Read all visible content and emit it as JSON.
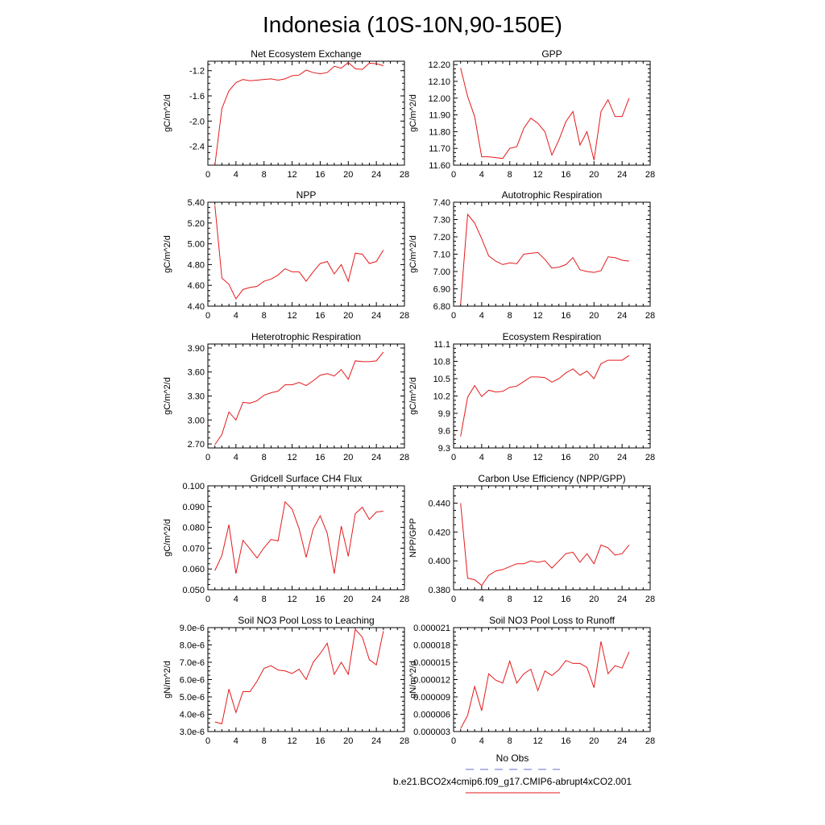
{
  "figure_title": "Indonesia (10S-10N,90-150E)",
  "legend": [
    {
      "label": "No Obs",
      "color": "#6b6bd6",
      "style": "dashed"
    },
    {
      "label": "b.e21.BCO2x4cmip6.f09_g17.CMIP6-abrupt4xCO2.001",
      "color": "#e41a1c",
      "style": "solid"
    }
  ],
  "chart_data": [
    {
      "type": "line",
      "title": "Net Ecosystem Exchange",
      "ylabel": "gC/m^2/d",
      "xlim": [
        0,
        28
      ],
      "ylim": [
        -2.7,
        -1.05
      ],
      "xticks": [
        0,
        4,
        8,
        12,
        16,
        20,
        24,
        28
      ],
      "xtick_labels": [
        "0",
        "4",
        "8",
        "12",
        "16",
        "20",
        "24",
        "28"
      ],
      "yticks": [
        -2.4,
        -2.0,
        -1.6,
        -1.2
      ],
      "ytick_labels": [
        "-2.4",
        "-2.0",
        "-1.6",
        "-1.2"
      ],
      "x": [
        1,
        2,
        3,
        4,
        5,
        6,
        7,
        8,
        9,
        10,
        11,
        12,
        13,
        14,
        15,
        16,
        17,
        18,
        19,
        20,
        21,
        22,
        23,
        24,
        25
      ],
      "series": [
        {
          "name": "b.e21.BCO2x4cmip6.f09_g17.CMIP6-abrupt4xCO2.001",
          "values": [
            -2.7,
            -1.8,
            -1.52,
            -1.39,
            -1.34,
            -1.36,
            -1.35,
            -1.34,
            -1.33,
            -1.35,
            -1.33,
            -1.28,
            -1.27,
            -1.19,
            -1.23,
            -1.25,
            -1.23,
            -1.13,
            -1.16,
            -1.07,
            -1.17,
            -1.18,
            -1.08,
            -1.09,
            -1.12
          ]
        }
      ]
    },
    {
      "type": "line",
      "title": "GPP",
      "ylabel": "gC/m^2/d",
      "xlim": [
        0,
        28
      ],
      "ylim": [
        11.6,
        12.22
      ],
      "xticks": [
        0,
        4,
        8,
        12,
        16,
        20,
        24,
        28
      ],
      "xtick_labels": [
        "0",
        "4",
        "8",
        "12",
        "16",
        "20",
        "24",
        "28"
      ],
      "yticks": [
        11.6,
        11.7,
        11.8,
        11.9,
        12.0,
        12.1,
        12.2
      ],
      "ytick_labels": [
        "11.60",
        "11.70",
        "11.80",
        "11.90",
        "12.00",
        "12.10",
        "12.20"
      ],
      "x": [
        1,
        2,
        3,
        4,
        5,
        6,
        7,
        8,
        9,
        10,
        11,
        12,
        13,
        14,
        15,
        16,
        17,
        18,
        19,
        20,
        21,
        22,
        23,
        24,
        25
      ],
      "series": [
        {
          "name": "b.e21.BCO2x4cmip6.f09_g17.CMIP6-abrupt4xCO2.001",
          "values": [
            12.18,
            12.01,
            11.89,
            11.65,
            11.65,
            11.645,
            11.64,
            11.7,
            11.71,
            11.82,
            11.88,
            11.85,
            11.8,
            11.66,
            11.75,
            11.86,
            11.92,
            11.72,
            11.8,
            11.63,
            11.92,
            11.99,
            11.89,
            11.89,
            12.0
          ]
        }
      ]
    },
    {
      "type": "line",
      "title": "NPP",
      "ylabel": "gC/m^2/d",
      "xlim": [
        0,
        28
      ],
      "ylim": [
        4.4,
        5.4
      ],
      "xticks": [
        0,
        4,
        8,
        12,
        16,
        20,
        24,
        28
      ],
      "xtick_labels": [
        "0",
        "4",
        "8",
        "12",
        "16",
        "20",
        "24",
        "28"
      ],
      "yticks": [
        4.4,
        4.6,
        4.8,
        5.0,
        5.2,
        5.4
      ],
      "ytick_labels": [
        "4.40",
        "4.60",
        "4.80",
        "5.00",
        "5.20",
        "5.40"
      ],
      "x": [
        1,
        2,
        3,
        4,
        5,
        6,
        7,
        8,
        9,
        10,
        11,
        12,
        13,
        14,
        15,
        16,
        17,
        18,
        19,
        20,
        21,
        22,
        23,
        24,
        25
      ],
      "series": [
        {
          "name": "b.e21.BCO2x4cmip6.f09_g17.CMIP6-abrupt4xCO2.001",
          "values": [
            5.37,
            4.67,
            4.61,
            4.47,
            4.56,
            4.58,
            4.59,
            4.64,
            4.66,
            4.7,
            4.76,
            4.73,
            4.73,
            4.64,
            4.73,
            4.81,
            4.83,
            4.71,
            4.8,
            4.64,
            4.91,
            4.9,
            4.81,
            4.83,
            4.94
          ]
        }
      ]
    },
    {
      "type": "line",
      "title": "Autotrophic Respiration",
      "ylabel": "gC/m^2/d",
      "xlim": [
        0,
        28
      ],
      "ylim": [
        6.8,
        7.4
      ],
      "xticks": [
        0,
        4,
        8,
        12,
        16,
        20,
        24,
        28
      ],
      "xtick_labels": [
        "0",
        "4",
        "8",
        "12",
        "16",
        "20",
        "24",
        "28"
      ],
      "yticks": [
        6.8,
        6.9,
        7.0,
        7.1,
        7.2,
        7.3,
        7.4
      ],
      "ytick_labels": [
        "6.80",
        "6.90",
        "7.00",
        "7.10",
        "7.20",
        "7.30",
        "7.40"
      ],
      "x": [
        1,
        2,
        3,
        4,
        5,
        6,
        7,
        8,
        9,
        10,
        11,
        12,
        13,
        14,
        15,
        16,
        17,
        18,
        19,
        20,
        21,
        22,
        23,
        24,
        25
      ],
      "series": [
        {
          "name": "b.e21.BCO2x4cmip6.f09_g17.CMIP6-abrupt4xCO2.001",
          "values": [
            6.81,
            7.33,
            7.28,
            7.19,
            7.09,
            7.06,
            7.04,
            7.05,
            7.045,
            7.1,
            7.105,
            7.11,
            7.07,
            7.02,
            7.025,
            7.04,
            7.08,
            7.01,
            7.0,
            6.995,
            7.005,
            7.085,
            7.08,
            7.065,
            7.06
          ]
        }
      ]
    },
    {
      "type": "line",
      "title": "Heterotrophic Respiration",
      "ylabel": "gC/m^2/d",
      "xlim": [
        0,
        28
      ],
      "ylim": [
        2.65,
        3.95
      ],
      "xticks": [
        0,
        4,
        8,
        12,
        16,
        20,
        24,
        28
      ],
      "xtick_labels": [
        "0",
        "4",
        "8",
        "12",
        "16",
        "20",
        "24",
        "28"
      ],
      "yticks": [
        2.7,
        3.0,
        3.3,
        3.6,
        3.9
      ],
      "ytick_labels": [
        "2.70",
        "3.00",
        "3.30",
        "3.60",
        "3.90"
      ],
      "x": [
        1,
        2,
        3,
        4,
        5,
        6,
        7,
        8,
        9,
        10,
        11,
        12,
        13,
        14,
        15,
        16,
        17,
        18,
        19,
        20,
        21,
        22,
        23,
        24,
        25
      ],
      "series": [
        {
          "name": "b.e21.BCO2x4cmip6.f09_g17.CMIP6-abrupt4xCO2.001",
          "values": [
            2.69,
            2.82,
            3.1,
            3.0,
            3.22,
            3.21,
            3.24,
            3.31,
            3.34,
            3.36,
            3.44,
            3.44,
            3.47,
            3.43,
            3.49,
            3.56,
            3.58,
            3.55,
            3.63,
            3.51,
            3.74,
            3.73,
            3.73,
            3.74,
            3.85
          ]
        }
      ]
    },
    {
      "type": "line",
      "title": "Ecosystem Respiration",
      "ylabel": "gC/m^2/d",
      "xlim": [
        0,
        28
      ],
      "ylim": [
        9.3,
        11.1
      ],
      "xticks": [
        0,
        4,
        8,
        12,
        16,
        20,
        24,
        28
      ],
      "xtick_labels": [
        "0",
        "4",
        "8",
        "12",
        "16",
        "20",
        "24",
        "28"
      ],
      "yticks": [
        9.3,
        9.6,
        9.9,
        10.2,
        10.5,
        10.8,
        11.1
      ],
      "ytick_labels": [
        "9.3",
        "9.6",
        "9.9",
        "10.2",
        "10.5",
        "10.8",
        "11.1"
      ],
      "x": [
        1,
        2,
        3,
        4,
        5,
        6,
        7,
        8,
        9,
        10,
        11,
        12,
        13,
        14,
        15,
        16,
        17,
        18,
        19,
        20,
        21,
        22,
        23,
        24,
        25
      ],
      "series": [
        {
          "name": "b.e21.BCO2x4cmip6.f09_g17.CMIP6-abrupt4xCO2.001",
          "values": [
            9.5,
            10.18,
            10.38,
            10.19,
            10.3,
            10.27,
            10.28,
            10.35,
            10.37,
            10.45,
            10.53,
            10.53,
            10.52,
            10.44,
            10.5,
            10.6,
            10.67,
            10.56,
            10.63,
            10.5,
            10.76,
            10.82,
            10.82,
            10.82,
            10.9
          ]
        }
      ]
    },
    {
      "type": "line",
      "title": "Gridcell Surface CH4 Flux",
      "ylabel": "gC/m^2/d",
      "xlim": [
        0,
        28
      ],
      "ylim": [
        0.05,
        0.1
      ],
      "xticks": [
        0,
        4,
        8,
        12,
        16,
        20,
        24,
        28
      ],
      "xtick_labels": [
        "0",
        "4",
        "8",
        "12",
        "16",
        "20",
        "24",
        "28"
      ],
      "yticks": [
        0.05,
        0.06,
        0.07,
        0.08,
        0.09,
        0.1
      ],
      "ytick_labels": [
        "0.050",
        "0.060",
        "0.070",
        "0.080",
        "0.090",
        "0.100"
      ],
      "x": [
        1,
        2,
        3,
        4,
        5,
        6,
        7,
        8,
        9,
        10,
        11,
        12,
        13,
        14,
        15,
        16,
        17,
        18,
        19,
        20,
        21,
        22,
        23,
        24,
        25
      ],
      "series": [
        {
          "name": "b.e21.BCO2x4cmip6.f09_g17.CMIP6-abrupt4xCO2.001",
          "values": [
            0.0592,
            0.0665,
            0.0813,
            0.0578,
            0.0738,
            0.0696,
            0.0653,
            0.0702,
            0.0742,
            0.0735,
            0.0923,
            0.0888,
            0.0793,
            0.0656,
            0.0792,
            0.0856,
            0.0772,
            0.0578,
            0.0806,
            0.0661,
            0.0866,
            0.0897,
            0.0838,
            0.0874,
            0.0878
          ]
        }
      ]
    },
    {
      "type": "line",
      "title": "Carbon Use Efficiency (NPP/GPP)",
      "ylabel": "NPP/GPP",
      "xlim": [
        0,
        28
      ],
      "ylim": [
        0.38,
        0.452
      ],
      "xticks": [
        0,
        4,
        8,
        12,
        16,
        20,
        24,
        28
      ],
      "xtick_labels": [
        "0",
        "4",
        "8",
        "12",
        "16",
        "20",
        "24",
        "28"
      ],
      "yticks": [
        0.38,
        0.4,
        0.42,
        0.44
      ],
      "ytick_labels": [
        "0.380",
        "0.400",
        "0.420",
        "0.440"
      ],
      "x": [
        1,
        2,
        3,
        4,
        5,
        6,
        7,
        8,
        9,
        10,
        11,
        12,
        13,
        14,
        15,
        16,
        17,
        18,
        19,
        20,
        21,
        22,
        23,
        24,
        25
      ],
      "series": [
        {
          "name": "b.e21.BCO2x4cmip6.f09_g17.CMIP6-abrupt4xCO2.001",
          "values": [
            0.44,
            0.388,
            0.387,
            0.383,
            0.39,
            0.393,
            0.394,
            0.396,
            0.398,
            0.398,
            0.4,
            0.399,
            0.4,
            0.395,
            0.4,
            0.405,
            0.406,
            0.399,
            0.405,
            0.398,
            0.411,
            0.409,
            0.404,
            0.405,
            0.411
          ]
        }
      ]
    },
    {
      "type": "line",
      "title": "Soil NO3 Pool Loss to Leaching",
      "ylabel": "gN/m^2/d",
      "xlim": [
        0,
        28
      ],
      "ylim": [
        3e-06,
        9e-06
      ],
      "xticks": [
        0,
        4,
        8,
        12,
        16,
        20,
        24,
        28
      ],
      "xtick_labels": [
        "0",
        "4",
        "8",
        "12",
        "16",
        "20",
        "24",
        "28"
      ],
      "yticks": [
        3e-06,
        4e-06,
        5e-06,
        6e-06,
        7e-06,
        8e-06,
        9e-06
      ],
      "ytick_labels": [
        "3.0e-6",
        "4.0e-6",
        "5.0e-6",
        "6.0e-6",
        "7.0e-6",
        "8.0e-6",
        "9.0e-6"
      ],
      "x": [
        1,
        2,
        3,
        4,
        5,
        6,
        7,
        8,
        9,
        10,
        11,
        12,
        13,
        14,
        15,
        16,
        17,
        18,
        19,
        20,
        21,
        22,
        23,
        24,
        25
      ],
      "series": [
        {
          "name": "b.e21.BCO2x4cmip6.f09_g17.CMIP6-abrupt4xCO2.001",
          "values": [
            3.55e-06,
            3.45e-06,
            5.45e-06,
            4.1e-06,
            5.3e-06,
            5.3e-06,
            5.9e-06,
            6.65e-06,
            6.8e-06,
            6.55e-06,
            6.5e-06,
            6.35e-06,
            6.6e-06,
            6e-06,
            7e-06,
            7.5e-06,
            8.1e-06,
            6.3e-06,
            7e-06,
            6.3e-06,
            8.9e-06,
            8.45e-06,
            7.15e-06,
            6.85e-06,
            8.8e-06
          ]
        }
      ]
    },
    {
      "type": "line",
      "title": "Soil NO3 Pool Loss to Runoff",
      "ylabel": "gN/m^2/d",
      "xlim": [
        0,
        28
      ],
      "ylim": [
        3e-06,
        2.1e-05
      ],
      "xticks": [
        0,
        4,
        8,
        12,
        16,
        20,
        24,
        28
      ],
      "xtick_labels": [
        "0",
        "4",
        "8",
        "12",
        "16",
        "20",
        "24",
        "28"
      ],
      "yticks": [
        3e-06,
        6e-06,
        9e-06,
        1.2e-05,
        1.5e-05,
        1.8e-05,
        2.1e-05
      ],
      "ytick_labels": [
        "0.000003",
        "0.000006",
        "0.000009",
        "0.000012",
        "0.000015",
        "0.000018",
        "0.000021"
      ],
      "x": [
        1,
        2,
        3,
        4,
        5,
        6,
        7,
        8,
        9,
        10,
        11,
        12,
        13,
        14,
        15,
        16,
        17,
        18,
        19,
        20,
        21,
        22,
        23,
        24,
        25
      ],
      "series": [
        {
          "name": "b.e21.BCO2x4cmip6.f09_g17.CMIP6-abrupt4xCO2.001",
          "values": [
            3.5e-06,
            5.8e-06,
            1.08e-05,
            6.6e-06,
            1.3e-05,
            1.19e-05,
            1.14e-05,
            1.52e-05,
            1.14e-05,
            1.3e-05,
            1.38e-05,
            1.01e-05,
            1.35e-05,
            1.27e-05,
            1.37e-05,
            1.53e-05,
            1.48e-05,
            1.48e-05,
            1.41e-05,
            1.06e-05,
            1.86e-05,
            1.3e-05,
            1.44e-05,
            1.4e-05,
            1.68e-05
          ]
        }
      ]
    }
  ]
}
